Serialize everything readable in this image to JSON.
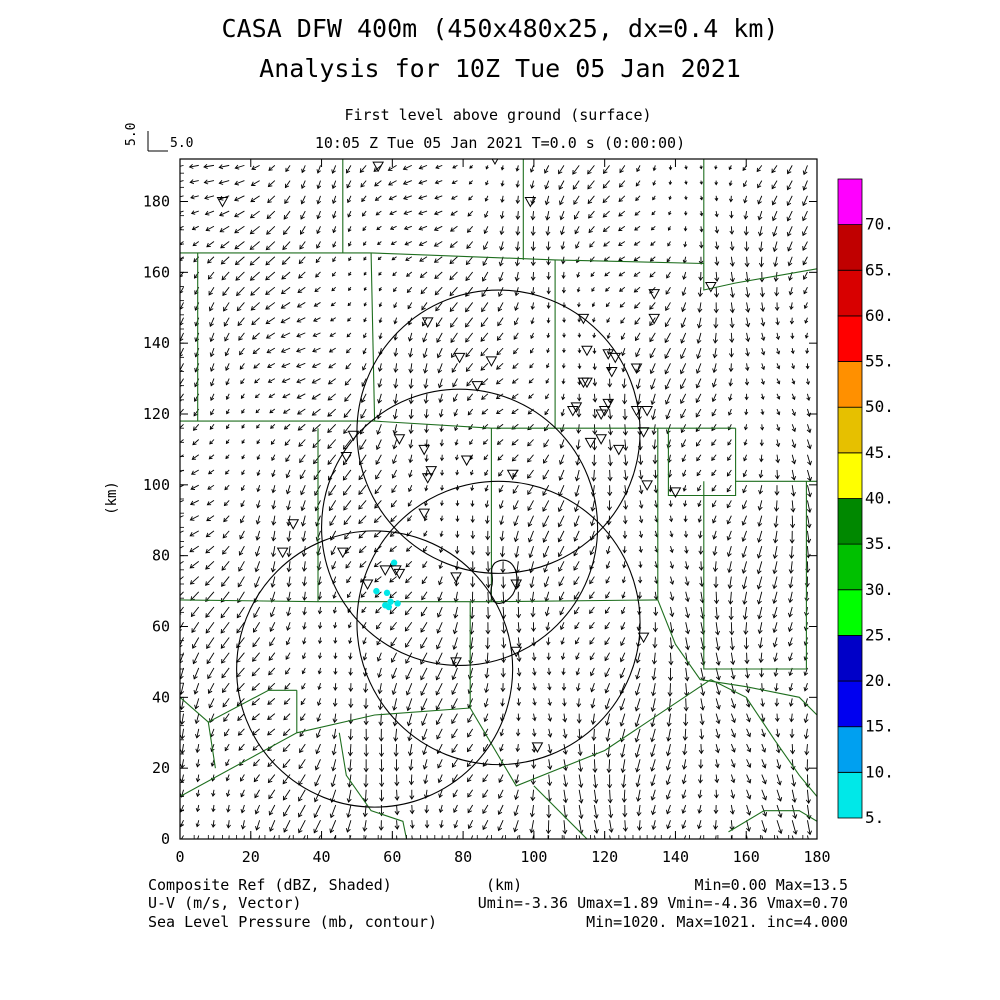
{
  "header": {
    "title_line1": "CASA DFW 400m (450x480x25, dx=0.4 km)",
    "title_line2": "Analysis for 10Z Tue 05 Jan 2021",
    "subtitle_level": "First level above ground (surface)",
    "subtitle_time": "10:05 Z Tue 05 Jan 2021    T=0.0 s (0:00:00)",
    "vector_ref_vertical": "5.0",
    "vector_ref_horizontal": "5.0"
  },
  "footer": {
    "field1": "Composite Ref (dBZ, Shaded)",
    "field1_stats": "Min=0.00 Max=13.5",
    "field2": "U-V (m/s, Vector)",
    "field2_stats": "Umin=-3.36 Umax=1.89 Vmin=-4.36 Vmax=0.70",
    "field3": "Sea Level Pressure (mb, contour)",
    "field3_stats": "Min=1020. Max=1021. inc=4.000",
    "xunit": "(km)"
  },
  "chart_data": {
    "type": "heatmap",
    "xlabel": "(km)",
    "ylabel": "(km)",
    "xlim": [
      0,
      180
    ],
    "ylim": [
      0,
      192
    ],
    "xticks": [
      "0",
      "20",
      "40",
      "60",
      "80",
      "100",
      "120",
      "140",
      "160",
      "180"
    ],
    "yticks": [
      "0",
      "20",
      "40",
      "60",
      "80",
      "100",
      "120",
      "140",
      "160",
      "180"
    ],
    "colorbar": {
      "labels": [
        "5.",
        "10.",
        "15.",
        "20.",
        "25.",
        "30.",
        "35.",
        "40.",
        "45.",
        "50.",
        "55.",
        "60.",
        "65.",
        "70."
      ],
      "colors": [
        "#00e8e8",
        "#00a0f0",
        "#0000f0",
        "#0000c8",
        "#00ff00",
        "#00c000",
        "#008800",
        "#ffff00",
        "#e6c000",
        "#ff9000",
        "#ff0000",
        "#d80000",
        "#c00000",
        "#ff00ff"
      ],
      "units": "dBZ"
    },
    "radar_rings": [
      {
        "cx": 90,
        "cy": 115,
        "r": 40
      },
      {
        "cx": 79,
        "cy": 88,
        "r": 39
      },
      {
        "cx": 90,
        "cy": 61,
        "r": 40
      },
      {
        "cx": 55,
        "cy": 48,
        "r": 39
      }
    ],
    "pressure_contour": {
      "value": 1020,
      "center": [
        91,
        72
      ]
    },
    "reflectivity_cells": [
      {
        "x": 60.5,
        "y": 78.0,
        "dbz": 7
      },
      {
        "x": 55.5,
        "y": 70.0,
        "dbz": 7
      },
      {
        "x": 58.5,
        "y": 69.5,
        "dbz": 8
      },
      {
        "x": 59.5,
        "y": 67.0,
        "dbz": 9
      },
      {
        "x": 59.0,
        "y": 65.5,
        "dbz": 9
      },
      {
        "x": 61.5,
        "y": 66.5,
        "dbz": 8
      },
      {
        "x": 58.0,
        "y": 66.0,
        "dbz": 7
      }
    ],
    "stations": [
      [
        56,
        190
      ],
      [
        89,
        192
      ],
      [
        12,
        180
      ],
      [
        99,
        180
      ],
      [
        150,
        156
      ],
      [
        134,
        154
      ],
      [
        134,
        147
      ],
      [
        70,
        146
      ],
      [
        114,
        147
      ],
      [
        79,
        136
      ],
      [
        88,
        135
      ],
      [
        115,
        138
      ],
      [
        121,
        137
      ],
      [
        123,
        136
      ],
      [
        122,
        132
      ],
      [
        129,
        133
      ],
      [
        114,
        129
      ],
      [
        115,
        129
      ],
      [
        84,
        128
      ],
      [
        111,
        121
      ],
      [
        112,
        122
      ],
      [
        119,
        120
      ],
      [
        120,
        121
      ],
      [
        121,
        123
      ],
      [
        129,
        121
      ],
      [
        132,
        121
      ],
      [
        131,
        115
      ],
      [
        49,
        114
      ],
      [
        47,
        108
      ],
      [
        62,
        113
      ],
      [
        69,
        110
      ],
      [
        116,
        112
      ],
      [
        119,
        113
      ],
      [
        124,
        110
      ],
      [
        71,
        104
      ],
      [
        70,
        102
      ],
      [
        81,
        107
      ],
      [
        94,
        103
      ],
      [
        132,
        100
      ],
      [
        140,
        98
      ],
      [
        69,
        92
      ],
      [
        32,
        89
      ],
      [
        29,
        81
      ],
      [
        46,
        81
      ],
      [
        58,
        76
      ],
      [
        61,
        76
      ],
      [
        62,
        75
      ],
      [
        78,
        74
      ],
      [
        95,
        72
      ],
      [
        53,
        72
      ],
      [
        95,
        53
      ],
      [
        78,
        50
      ],
      [
        131,
        57
      ],
      [
        101,
        26
      ]
    ],
    "wind_field_note": "vectors on regular grid, range U -3.36..1.89, V -4.36..0.70 m/s"
  }
}
